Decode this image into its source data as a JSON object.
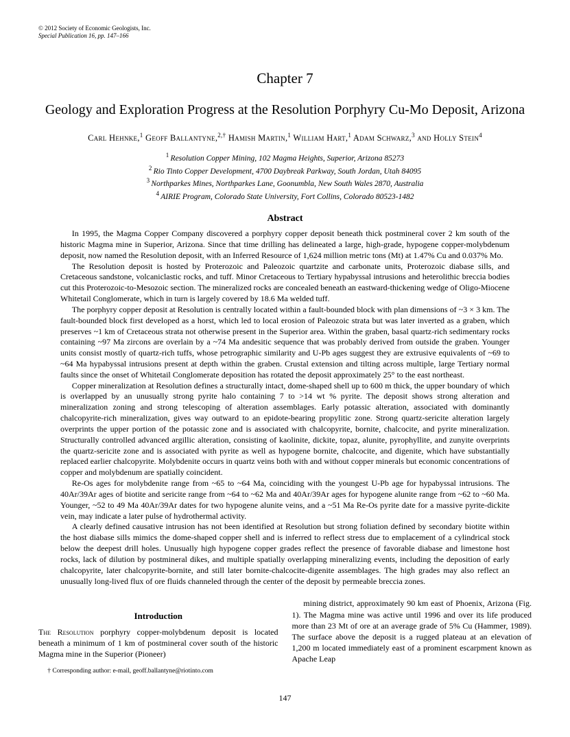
{
  "copyright": {
    "line1": "© 2012 Society of Economic Geologists, Inc.",
    "line2": "Special Publication 16, pp. 147–166"
  },
  "chapter": "Chapter 7",
  "title": "Geology and Exploration Progress at the Resolution Porphyry Cu-Mo Deposit, Arizona",
  "authors": {
    "a1": "Carl Hehnke,",
    "s1": "1",
    "a2": " Geoff Ballantyne,",
    "s2": "2,†",
    "a3": " Hamish Martin,",
    "s3": "1",
    "a4": " William Hart,",
    "s4": "1",
    "a5": " Adam Schwarz,",
    "s5": "3",
    "a6": " and Holly Stein",
    "s6": "4"
  },
  "affils": {
    "n1": "1 ",
    "t1": "Resolution Copper Mining, 102 Magma Heights, Superior, Arizona 85273",
    "n2": "2 ",
    "t2": "Rio Tinto Copper Development, 4700 Daybreak Parkway, South Jordan, Utah 84095",
    "n3": "3 ",
    "t3": "Northparkes Mines, Northparkes Lane, Goonumbla, New South Wales 2870, Australia",
    "n4": "4 ",
    "t4": "AIRIE Program, Colorado State University, Fort Collins, Colorado 80523-1482"
  },
  "abstract_head": "Abstract",
  "abs": {
    "p1": "In 1995, the Magma Copper Company discovered a porphyry copper deposit beneath thick postmineral cover 2 km south of the historic Magma mine in Superior, Arizona. Since that time drilling has delineated a large, high-grade, hypogene copper-molybdenum deposit, now named the Resolution deposit, with an Inferred Resource of 1,624 million metric tons (Mt) at 1.47% Cu and 0.037% Mo.",
    "p2": "The Resolution deposit is hosted by Proterozoic and Paleozoic quartzite and carbonate units, Proterozoic diabase sills, and Cretaceous sandstone, volcaniclastic rocks, and tuff. Minor Cretaceous to Tertiary hypabyssal intrusions and heterolithic breccia bodies cut this Proterozoic-to-Mesozoic section. The mineralized rocks are concealed beneath an eastward-thickening wedge of Oligo-Miocene Whitetail Conglomerate, which in turn is largely covered by 18.6 Ma welded tuff.",
    "p3": "The porphyry copper deposit at Resolution is centrally located within a fault-bounded block with plan dimensions of ~3 × 3 km. The fault-bounded block first developed as a horst, which led to local erosion of Paleozoic strata but was later inverted as a graben, which preserves ~1 km of Cretaceous strata not otherwise present in the Superior area. Within the graben, basal quartz-rich sedimentary rocks containing ~97 Ma zircons are overlain by a ~74 Ma andesitic sequence that was probably derived from outside the graben. Younger units consist mostly of quartz-rich tuffs, whose petrographic similarity and U-Pb ages suggest they are extrusive equivalents of ~69 to ~64 Ma hypabyssal intrusions present at depth within the graben. Crustal extension and tilting across multiple, large Tertiary normal faults since the onset of Whitetail Conglomerate deposition has rotated the deposit approximately 25° to the east northeast.",
    "p4": "Copper mineralization at Resolution defines a structurally intact, dome-shaped shell up to 600 m thick, the upper boundary of which is overlapped by an unusually strong pyrite halo containing 7 to >14 wt % pyrite. The deposit shows strong alteration and mineralization zoning and strong telescoping of alteration assemblages. Early potassic alteration, associated with dominantly chalcopyrite-rich mineralization, gives way outward to an epidote-bearing propylitic zone. Strong quartz-sericite alteration largely overprints the upper portion of the potassic zone and is associated with chalcopyrite, bornite, chalcocite, and pyrite mineralization. Structurally controlled advanced argillic alteration, consisting of kaolinite, dickite, topaz, alunite, pyrophyllite, and zunyite overprints the quartz-sericite zone and is associated with pyrite as well as hypogene bornite, chalcocite, and digenite, which have substantially replaced earlier chalcopyrite. Molybdenite occurs in quartz veins both with and without copper minerals but economic concentrations of copper and molybdenum are spatially coincident.",
    "p5": "Re-Os ages for molybdenite range from ~65 to ~64 Ma, coinciding with the youngest U-Pb age for hypabyssal intrusions. The 40Ar/39Ar ages of biotite and sericite range from ~64 to ~62 Ma and 40Ar/39Ar ages for hypogene alunite range from ~62 to ~60 Ma. Younger, ~52 to 49 Ma 40Ar/39Ar dates for two hypogene alunite veins, and a ~51 Ma Re-Os pyrite date for a massive pyrite-dickite vein, may indicate a later pulse of hydrothermal activity.",
    "p6": "A clearly defined causative intrusion has not been identified at Resolution but strong foliation defined by secondary biotite within the host diabase sills mimics the dome-shaped copper shell and is inferred to reflect stress due to emplacement of a cylindrical stock below the deepest drill holes. Unusually high hypogene copper grades reflect the presence of favorable diabase and limestone host rocks, lack of dilution by postmineral dikes, and multiple spatially overlapping mineralizing events, including the deposition of early chalcopyrite, later chalcopyrite-bornite, and still later bornite-chalcocite-digenite assemblages. The high grades may also reflect an unusually long-lived flux of ore fluids channeled through the center of the deposit by permeable breccia zones."
  },
  "intro_head": "Introduction",
  "intro": {
    "lead1": "The Resolution",
    "p1_rest": " porphyry copper-molybdenum deposit is located beneath a minimum of 1 km of postmineral cover south of the historic Magma mine in the Superior (Pioneer)",
    "p2": "mining district, approximately 90 km east of Phoenix, Arizona (Fig. 1). The Magma mine was active until 1996 and over its life produced more than 23 Mt of ore at an average grade of 5% Cu (Hammer, 1989). The surface above the deposit is a rugged plateau at an elevation of 1,200 m located immediately east of a prominent escarpment known as Apache Leap"
  },
  "footnote": "† Corresponding author: e-mail, geoff.ballantyne@riotinto.com",
  "page_num": "147"
}
